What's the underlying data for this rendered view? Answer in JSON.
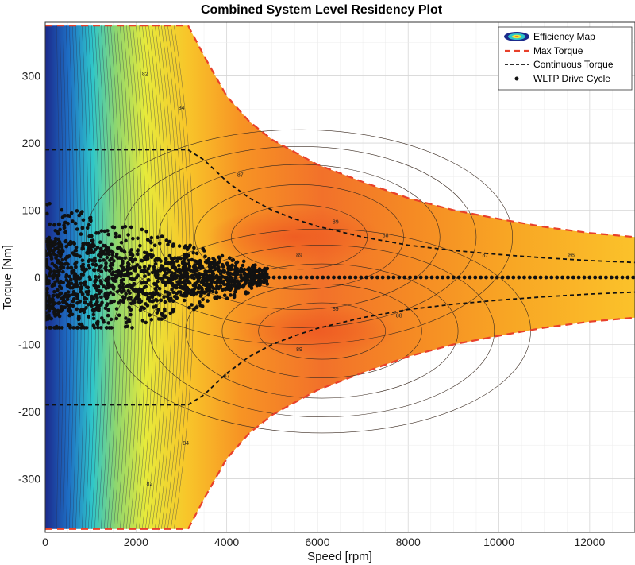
{
  "chart_data": {
    "type": "contour",
    "title": "Combined System Level Residency Plot",
    "xlabel": "Speed [rpm]",
    "ylabel": "Torque [Nm]",
    "xlim": [
      0,
      13000
    ],
    "ylim": [
      -380,
      380
    ],
    "xticks": [
      0,
      2000,
      4000,
      6000,
      8000,
      10000,
      12000
    ],
    "yticks": [
      -300,
      -200,
      -100,
      0,
      100,
      200,
      300
    ],
    "grid": true,
    "legend_position": "top-right",
    "legend": [
      "Efficiency Map",
      "Max Torque",
      "Continuous Torque",
      "WLTP Drive Cycle"
    ],
    "contour_levels": [
      82,
      83,
      84,
      85,
      86,
      87,
      88,
      89
    ],
    "efficiency_peak": [
      {
        "speed": 5500,
        "torque": 60,
        "efficiency": 89
      },
      {
        "speed": 6000,
        "torque": -80,
        "efficiency": 89
      }
    ],
    "max_torque": {
      "x": [
        0,
        3150,
        3500,
        4000,
        4500,
        5000,
        6000,
        7000,
        8000,
        9000,
        10000,
        11000,
        12000,
        13000
      ],
      "y": [
        375,
        375,
        330,
        270,
        232,
        205,
        168,
        142,
        118,
        100,
        87,
        75,
        66,
        60
      ]
    },
    "continuous_torque": {
      "x": [
        0,
        3150,
        3500,
        4000,
        4500,
        5000,
        5500,
        6000,
        7000,
        8000,
        9000,
        10000,
        11000,
        12000,
        13000
      ],
      "y": [
        190,
        190,
        175,
        143,
        118,
        100,
        87,
        76,
        60,
        48,
        40,
        34,
        29,
        25,
        22
      ]
    },
    "wltp_points_range": {
      "speed": [
        0,
        4900
      ],
      "torque": [
        -75,
        115
      ]
    }
  }
}
